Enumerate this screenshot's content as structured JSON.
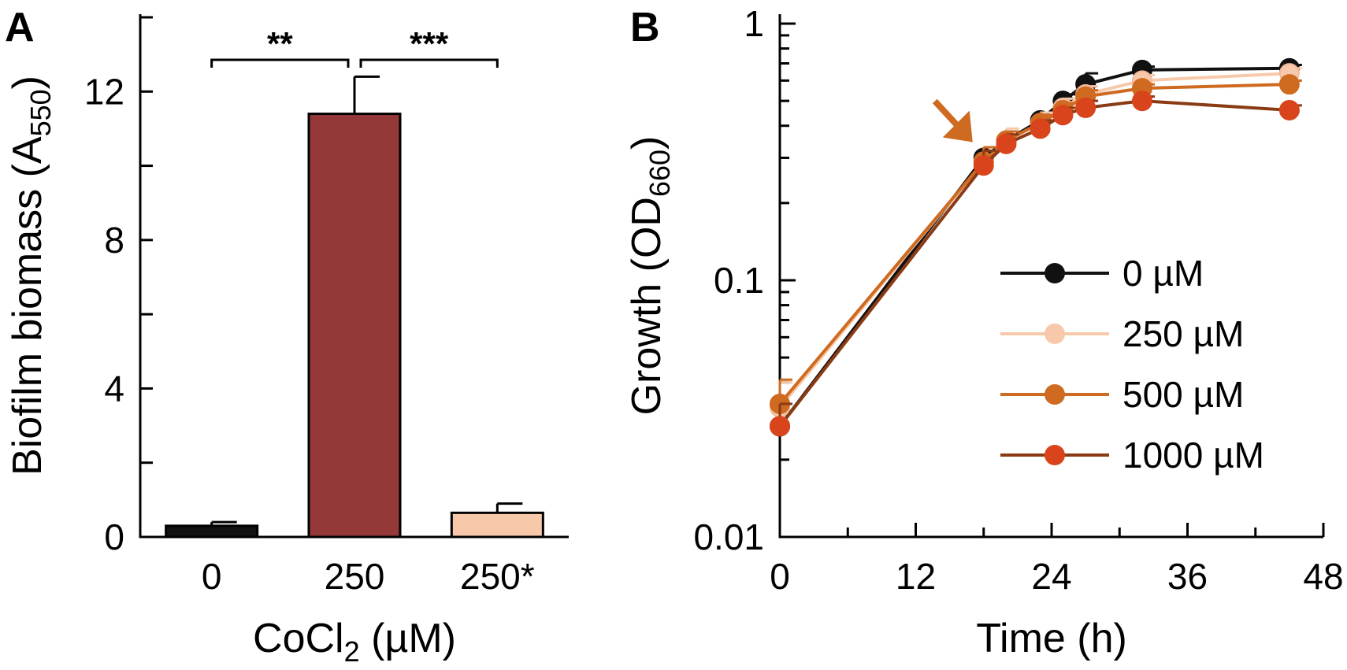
{
  "chart_data": [
    {
      "panel": "A",
      "type": "bar",
      "xlabel_main": "CoCl",
      "xlabel_sub": "2",
      "xlabel_rest": " (µM)",
      "ylabel_main": "Biofilm biomass (A",
      "ylabel_sub": "550",
      "ylabel_rest": ")",
      "ylim": [
        0,
        14
      ],
      "yticks": [
        0,
        4,
        8,
        12
      ],
      "ytick_labels": [
        "0",
        "4",
        "8",
        "12"
      ],
      "categories": [
        "0",
        "250",
        "250*"
      ],
      "values": [
        0.3,
        11.4,
        0.65
      ],
      "errors": [
        0.1,
        1.0,
        0.25
      ],
      "colors": [
        "#111111",
        "#943838",
        "#f7c9aa"
      ],
      "significance": [
        {
          "from": 0,
          "to": 1,
          "label": "**"
        },
        {
          "from": 1,
          "to": 2,
          "label": "***"
        }
      ]
    },
    {
      "panel": "B",
      "type": "line",
      "xlabel": "Time (h)",
      "ylabel_main": "Growth (OD",
      "ylabel_sub": "660",
      "ylabel_rest": ")",
      "yscale": "log",
      "ylim": [
        0.01,
        1
      ],
      "xlim": [
        0,
        48
      ],
      "xticks": [
        0,
        12,
        24,
        36,
        48
      ],
      "xtick_labels": [
        "0",
        "12",
        "24",
        "36",
        "48"
      ],
      "yticks": [
        0.01,
        0.1,
        1
      ],
      "ytick_labels": [
        "0.01",
        "0.1",
        "1"
      ],
      "arrow_at_time": 18,
      "x": [
        0,
        18,
        20,
        23,
        25,
        27,
        32,
        45
      ],
      "series": [
        {
          "name": "0 µM",
          "line_color": "#111111",
          "marker_color": "#111111",
          "values": [
            0.027,
            0.3,
            0.35,
            0.42,
            0.5,
            0.58,
            0.66,
            0.67
          ],
          "errors": [
            0.006,
            0.03,
            0.03,
            0.03,
            0.03,
            0.06,
            0.02,
            0.02
          ]
        },
        {
          "name": "250 µM",
          "line_color": "#f7c9aa",
          "marker_color": "#f7c9aa",
          "values": [
            0.032,
            0.29,
            0.35,
            0.41,
            0.47,
            0.53,
            0.6,
            0.64
          ],
          "errors": [
            0.008,
            0.04,
            0.04,
            0.04,
            0.04,
            0.04,
            0.03,
            0.03
          ]
        },
        {
          "name": "500 µM",
          "line_color": "#cf6a21",
          "marker_color": "#cf6a21",
          "values": [
            0.033,
            0.29,
            0.35,
            0.41,
            0.46,
            0.52,
            0.56,
            0.58
          ],
          "errors": [
            0.008,
            0.04,
            0.03,
            0.03,
            0.03,
            0.03,
            0.02,
            0.02
          ]
        },
        {
          "name": "1000 µM",
          "line_color": "#8a3b14",
          "marker_color": "#d9441c",
          "values": [
            0.027,
            0.28,
            0.34,
            0.39,
            0.44,
            0.47,
            0.5,
            0.46
          ],
          "errors": [
            0.006,
            0.04,
            0.03,
            0.03,
            0.03,
            0.03,
            0.02,
            0.02
          ]
        }
      ],
      "legend": [
        "0 µM",
        "250 µM",
        "500 µM",
        "1000 µM"
      ]
    }
  ]
}
